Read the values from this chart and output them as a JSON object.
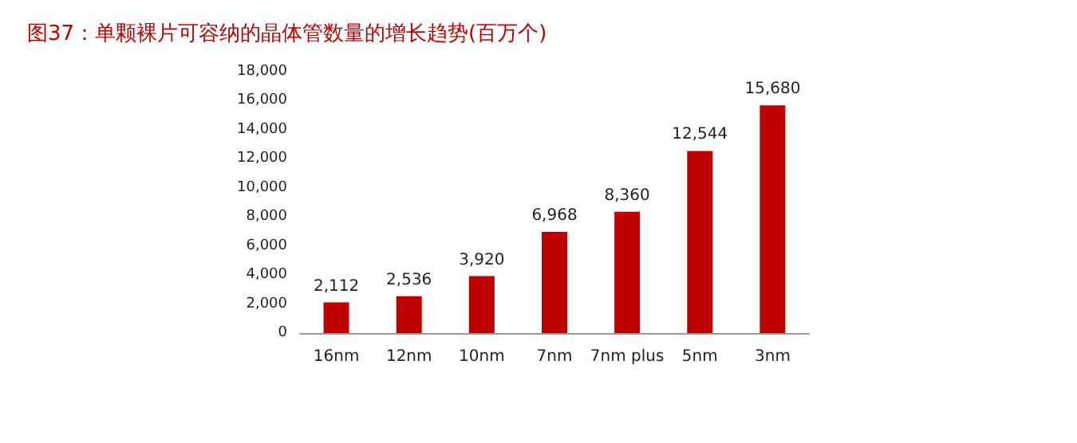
{
  "chart_data": {
    "type": "bar",
    "title": "图37：单颗裸片可容纳的晶体管数量的增长趋势(百万个)",
    "categories": [
      "16nm",
      "12nm",
      "10nm",
      "7nm",
      "7nm plus",
      "5nm",
      "3nm"
    ],
    "values": [
      2112,
      2536,
      3920,
      6968,
      8360,
      12544,
      15680
    ],
    "value_labels": [
      "2,112",
      "2,536",
      "3,920",
      "6,968",
      "8,360",
      "12,544",
      "15,680"
    ],
    "color": "#c00000",
    "ylim": [
      0,
      18000
    ],
    "yticks": [
      0,
      {
        "value": 2000,
        "label": "2,000"
      },
      {
        "value": 4000,
        "label": "4,000"
      },
      {
        "value": 6000,
        "label": "6,000"
      },
      {
        "value": 8000,
        "label": "8,000"
      },
      {
        "value": 10000,
        "label": "10,000"
      },
      {
        "value": 12000,
        "label": "12,000"
      },
      {
        "value": 14000,
        "label": "14,000"
      },
      {
        "value": 16000,
        "label": "16,000"
      },
      {
        "value": 18000,
        "label": "18,000"
      }
    ],
    "grid": false
  }
}
